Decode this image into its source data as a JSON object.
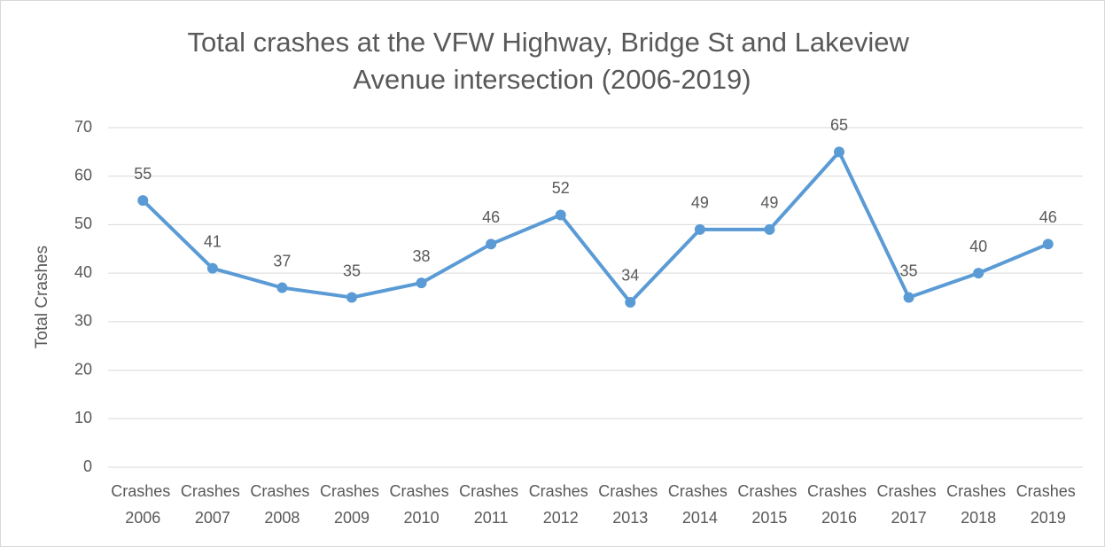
{
  "chart_data": {
    "type": "line",
    "title": "Total crashes at the VFW Highway, Bridge St and Lakeview Avenue intersection (2006-2019)",
    "y_label": "Total Crashes",
    "categories": [
      "Crashes 2006",
      "Crashes 2007",
      "Crashes 2008",
      "Crashes 2009",
      "Crashes 2010",
      "Crashes 2011",
      "Crashes 2012",
      "Crashes 2013",
      "Crashes 2014",
      "Crashes 2015",
      "Crashes 2016",
      "Crashes 2017",
      "Crashes 2018",
      "Crashes 2019"
    ],
    "values": [
      55,
      41,
      37,
      35,
      38,
      46,
      52,
      34,
      49,
      49,
      65,
      35,
      40,
      46
    ],
    "color": "#5b9bd5",
    "ylim": [
      0,
      70
    ],
    "yticks": [
      0,
      10,
      20,
      30,
      40,
      50,
      60,
      70
    ],
    "grid": true
  }
}
